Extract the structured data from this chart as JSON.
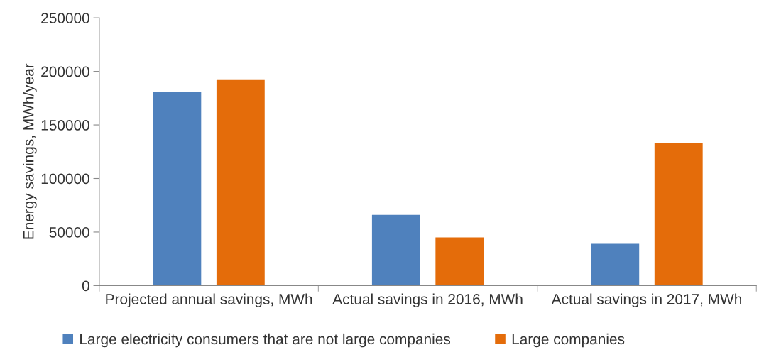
{
  "chart_data": {
    "type": "bar",
    "ylabel": "Energy savings, MWh/year",
    "categories": [
      "Projected annual savings, MWh",
      "Actual savings in 2016, MWh",
      "Actual savings in 2017, MWh"
    ],
    "series": [
      {
        "name": "Large electricity consumers that are not large companies",
        "color": "#4f81bd",
        "values": [
          181000,
          66000,
          39000
        ]
      },
      {
        "name": "Large companies",
        "color": "#e46c0a",
        "values": [
          192000,
          45000,
          133000
        ]
      }
    ],
    "ylim": [
      0,
      250000
    ],
    "yticks": [
      0,
      50000,
      100000,
      150000,
      200000,
      250000
    ],
    "grid": false,
    "legend": "bottom"
  }
}
